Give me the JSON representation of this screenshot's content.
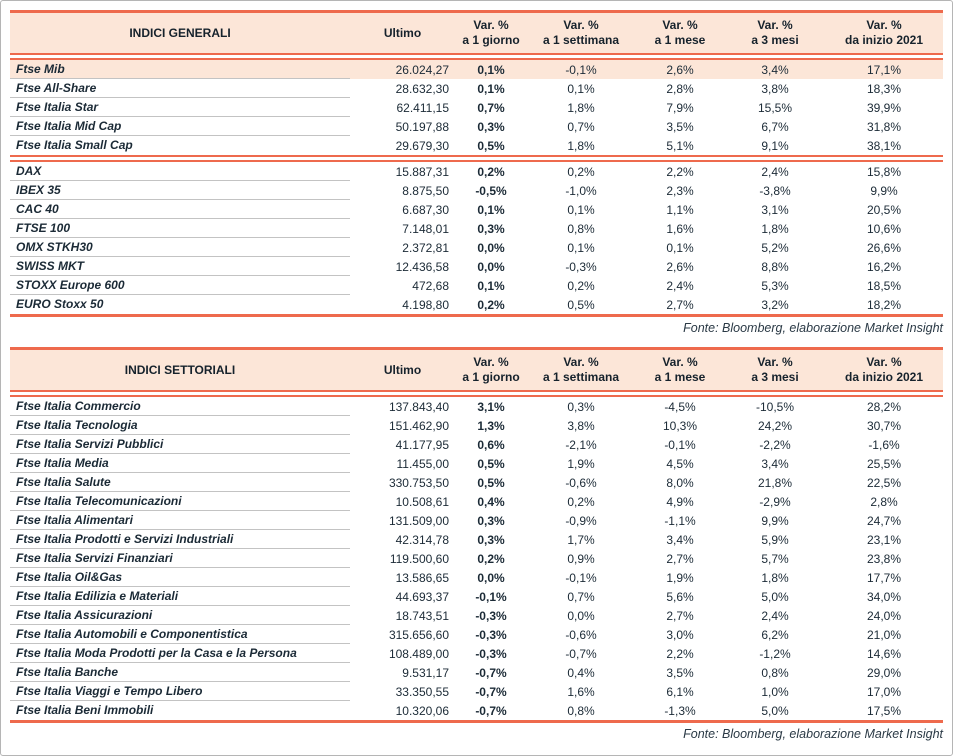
{
  "colors": {
    "salmon_accent": "#ee6a4d",
    "peach_header": "#fce6d8",
    "text_dark": "#16222c",
    "row_divider_gray": "#c3c3c3",
    "frame_border_gray": "#b5b5b5"
  },
  "tables": [
    {
      "title": "INDICI GENERALI",
      "header": {
        "ultimo": "Ultimo",
        "var": "Var. %",
        "periods": [
          "a 1 giorno",
          "a 1 settimana",
          "a 1 mese",
          "a 3 mesi",
          "da inizio 2021"
        ]
      },
      "footer": "Fonte: Bloomberg, elaborazione Market Insight",
      "groups": [
        {
          "rows": [
            {
              "name": "Ftse Mib",
              "highlight": true,
              "values": [
                "26.024,27",
                "0,1%",
                "-0,1%",
                "2,6%",
                "3,4%",
                "17,1%"
              ]
            },
            {
              "name": "Ftse All-Share",
              "values": [
                "28.632,30",
                "0,1%",
                "0,1%",
                "2,8%",
                "3,8%",
                "18,3%"
              ]
            },
            {
              "name": "Ftse Italia Star",
              "values": [
                "62.411,15",
                "0,7%",
                "1,8%",
                "7,9%",
                "15,5%",
                "39,9%"
              ]
            },
            {
              "name": "Ftse Italia Mid Cap",
              "values": [
                "50.197,88",
                "0,3%",
                "0,7%",
                "3,5%",
                "6,7%",
                "31,8%"
              ]
            },
            {
              "name": "Ftse Italia Small Cap",
              "values": [
                "29.679,30",
                "0,5%",
                "1,8%",
                "5,1%",
                "9,1%",
                "38,1%"
              ]
            }
          ]
        },
        {
          "rows": [
            {
              "name": "DAX",
              "values": [
                "15.887,31",
                "0,2%",
                "0,2%",
                "2,2%",
                "2,4%",
                "15,8%"
              ]
            },
            {
              "name": "IBEX 35",
              "values": [
                "8.875,50",
                "-0,5%",
                "-1,0%",
                "2,3%",
                "-3,8%",
                "9,9%"
              ]
            },
            {
              "name": "CAC 40",
              "values": [
                "6.687,30",
                "0,1%",
                "0,1%",
                "1,1%",
                "3,1%",
                "20,5%"
              ]
            },
            {
              "name": "FTSE 100",
              "values": [
                "7.148,01",
                "0,3%",
                "0,8%",
                "1,6%",
                "1,8%",
                "10,6%"
              ]
            },
            {
              "name": "OMX STKH30",
              "values": [
                "2.372,81",
                "0,0%",
                "0,1%",
                "0,1%",
                "5,2%",
                "26,6%"
              ]
            },
            {
              "name": "SWISS MKT",
              "values": [
                "12.436,58",
                "0,0%",
                "-0,3%",
                "2,6%",
                "8,8%",
                "16,2%"
              ]
            },
            {
              "name": "STOXX Europe 600",
              "values": [
                "472,68",
                "0,1%",
                "0,2%",
                "2,4%",
                "5,3%",
                "18,5%"
              ]
            },
            {
              "name": "EURO Stoxx 50",
              "values": [
                "4.198,80",
                "0,2%",
                "0,5%",
                "2,7%",
                "3,2%",
                "18,2%"
              ]
            }
          ]
        }
      ]
    },
    {
      "title": "INDICI SETTORIALI",
      "header": {
        "ultimo": "Ultimo",
        "var": "Var. %",
        "periods": [
          "a 1 giorno",
          "a 1 settimana",
          "a 1 mese",
          "a 3 mesi",
          "da inizio 2021"
        ]
      },
      "footer": "Fonte: Bloomberg, elaborazione Market Insight",
      "groups": [
        {
          "rows": [
            {
              "name": "Ftse Italia Commercio",
              "values": [
                "137.843,40",
                "3,1%",
                "0,3%",
                "-4,5%",
                "-10,5%",
                "28,2%"
              ]
            },
            {
              "name": "Ftse Italia Tecnologia",
              "values": [
                "151.462,90",
                "1,3%",
                "3,8%",
                "10,3%",
                "24,2%",
                "30,7%"
              ]
            },
            {
              "name": "Ftse Italia Servizi Pubblici",
              "values": [
                "41.177,95",
                "0,6%",
                "-2,1%",
                "-0,1%",
                "-2,2%",
                "-1,6%"
              ]
            },
            {
              "name": "Ftse Italia Media",
              "values": [
                "11.455,00",
                "0,5%",
                "1,9%",
                "4,5%",
                "3,4%",
                "25,5%"
              ]
            },
            {
              "name": "Ftse Italia Salute",
              "values": [
                "330.753,50",
                "0,5%",
                "-0,6%",
                "8,0%",
                "21,8%",
                "22,5%"
              ]
            },
            {
              "name": "Ftse Italia Telecomunicazioni",
              "values": [
                "10.508,61",
                "0,4%",
                "0,2%",
                "4,9%",
                "-2,9%",
                "2,8%"
              ]
            },
            {
              "name": "Ftse Italia Alimentari",
              "values": [
                "131.509,00",
                "0,3%",
                "-0,9%",
                "-1,1%",
                "9,9%",
                "24,7%"
              ]
            },
            {
              "name": "Ftse Italia Prodotti e Servizi Industriali",
              "values": [
                "42.314,78",
                "0,3%",
                "1,7%",
                "3,4%",
                "5,9%",
                "23,1%"
              ]
            },
            {
              "name": "Ftse Italia Servizi Finanziari",
              "values": [
                "119.500,60",
                "0,2%",
                "0,9%",
                "2,7%",
                "5,7%",
                "23,8%"
              ]
            },
            {
              "name": "Ftse Italia Oil&Gas",
              "values": [
                "13.586,65",
                "0,0%",
                "-0,1%",
                "1,9%",
                "1,8%",
                "17,7%"
              ]
            },
            {
              "name": "Ftse Italia Edilizia e Materiali",
              "values": [
                "44.693,37",
                "-0,1%",
                "0,7%",
                "5,6%",
                "5,0%",
                "34,0%"
              ]
            },
            {
              "name": "Ftse Italia Assicurazioni",
              "values": [
                "18.743,51",
                "-0,3%",
                "0,0%",
                "2,7%",
                "2,4%",
                "24,0%"
              ]
            },
            {
              "name": "Ftse Italia Automobili e Componentistica",
              "values": [
                "315.656,60",
                "-0,3%",
                "-0,6%",
                "3,0%",
                "6,2%",
                "21,0%"
              ]
            },
            {
              "name": "Ftse Italia Moda Prodotti per la Casa e la Persona",
              "values": [
                "108.489,00",
                "-0,3%",
                "-0,7%",
                "2,2%",
                "-1,2%",
                "14,6%"
              ]
            },
            {
              "name": "Ftse Italia Banche",
              "values": [
                "9.531,17",
                "-0,7%",
                "0,4%",
                "3,5%",
                "0,8%",
                "29,0%"
              ]
            },
            {
              "name": "Ftse Italia Viaggi e Tempo Libero",
              "values": [
                "33.350,55",
                "-0,7%",
                "1,6%",
                "6,1%",
                "1,0%",
                "17,0%"
              ]
            },
            {
              "name": "Ftse Italia Beni Immobili",
              "values": [
                "10.320,06",
                "-0,7%",
                "0,8%",
                "-1,3%",
                "5,0%",
                "17,5%"
              ]
            }
          ]
        }
      ]
    }
  ]
}
